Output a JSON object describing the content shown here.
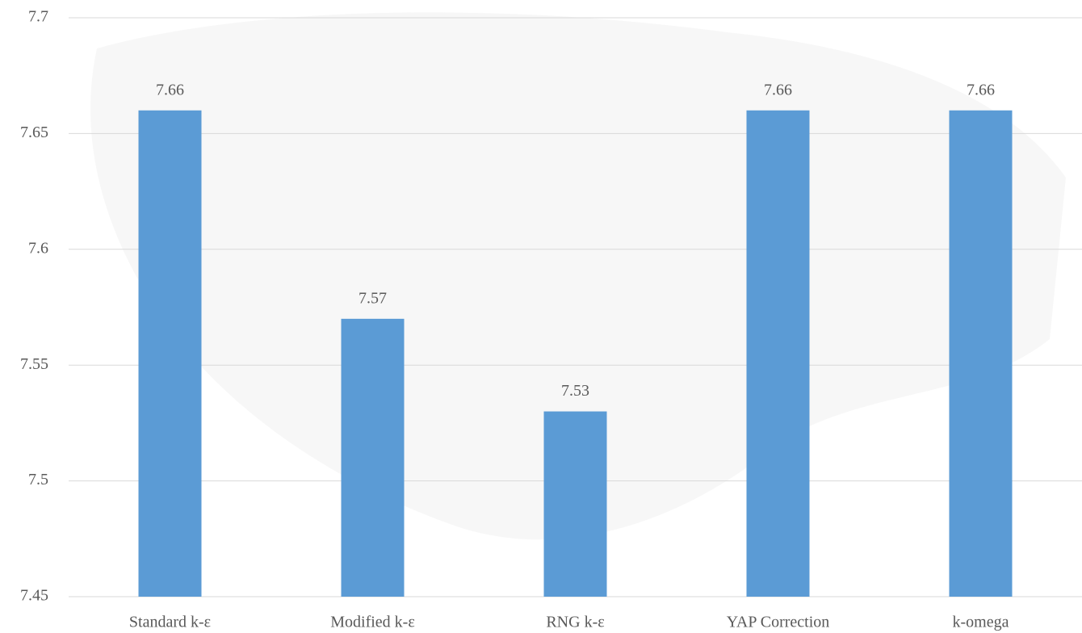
{
  "chart_data": {
    "type": "bar",
    "categories": [
      "Standard k-ε",
      "Modified k-ε",
      "RNG k-ε",
      "YAP Correction",
      "k-omega"
    ],
    "values": [
      7.66,
      7.57,
      7.53,
      7.66,
      7.66
    ],
    "color": "#5b9bd5",
    "ylim": [
      7.45,
      7.7
    ],
    "yticks": [
      7.45,
      7.5,
      7.55,
      7.6,
      7.65,
      7.7
    ],
    "grid": true
  }
}
